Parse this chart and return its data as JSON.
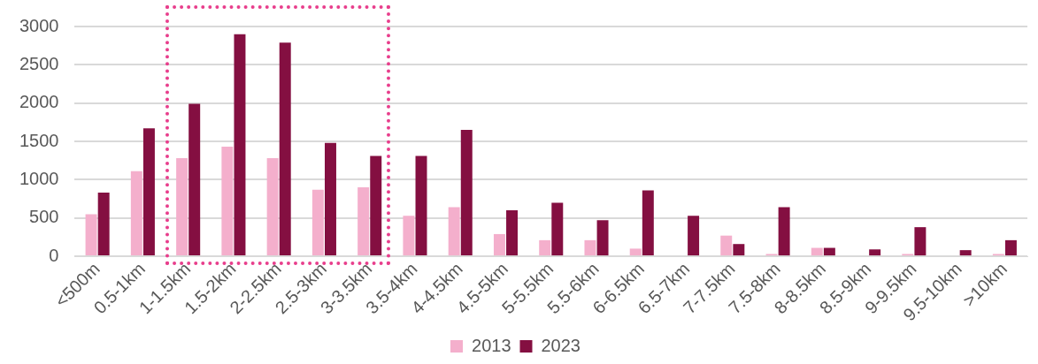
{
  "chart_data": {
    "type": "bar",
    "categories": [
      "<500m",
      "0.5-1km",
      "1-1.5km",
      "1.5-2km",
      "2-2.5km",
      "2.5-3km",
      "3-3.5km",
      "3.5-4km",
      "4-4.5km",
      "4.5-5km",
      "5-5.5km",
      "5.5-6km",
      "6-6.5km",
      "6.5-7km",
      "7-7.5km",
      "7.5-8km",
      "8-8.5km",
      "8.5-9km",
      "9-9.5km",
      "9.5-10km",
      ">10km"
    ],
    "series": [
      {
        "name": "2013",
        "color": "#f4afcc",
        "values": [
          550,
          1110,
          1280,
          1430,
          1280,
          870,
          900,
          530,
          640,
          290,
          210,
          210,
          100,
          0,
          270,
          30,
          110,
          0,
          30,
          0,
          30
        ]
      },
      {
        "name": "2023",
        "color": "#840f41",
        "values": [
          830,
          1670,
          1990,
          2900,
          2790,
          1480,
          1310,
          1310,
          1650,
          600,
          700,
          470,
          860,
          530,
          160,
          640,
          110,
          90,
          380,
          80,
          210
        ]
      }
    ],
    "ylim": [
      0,
      3000
    ],
    "yticks": [
      0,
      500,
      1000,
      1500,
      2000,
      2500,
      3000
    ],
    "grid": "y",
    "legend": "bottom"
  }
}
